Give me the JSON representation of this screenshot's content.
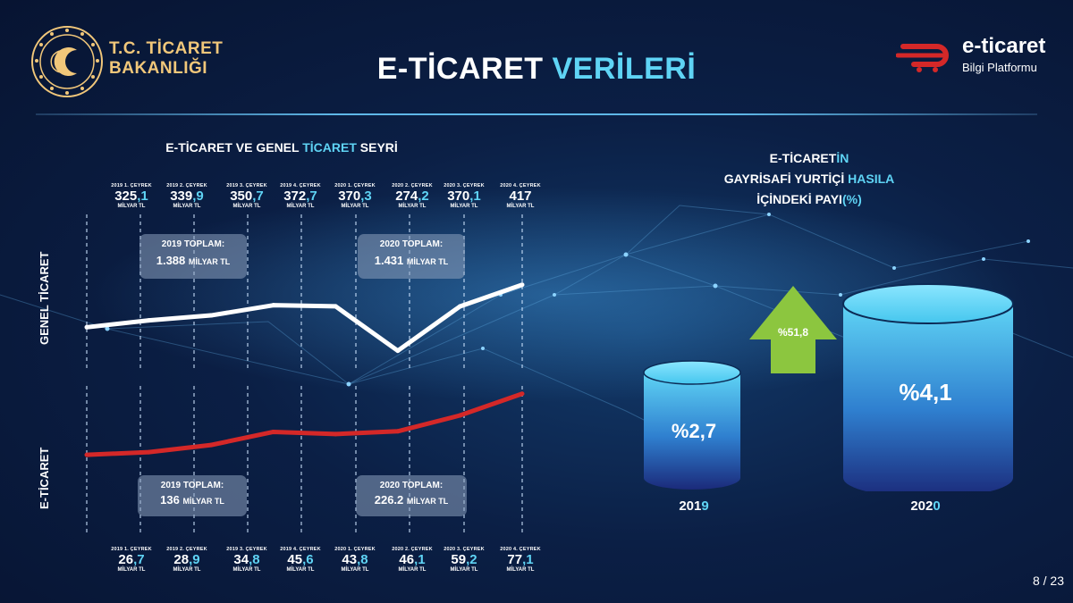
{
  "header": {
    "title_white": "E-TİCARET",
    "title_cyan": "VERİLERİ",
    "org_line1": "T.C. TİCARET",
    "org_line2": "BAKANLIĞI",
    "brand_main": "e-ticaret",
    "brand_sub": "Bilgi Platformu"
  },
  "line_chart": {
    "heading_white": "E-TİCARET VE GENEL",
    "heading_cyan": "TİCARET",
    "heading_end": "SEYRİ",
    "genel_label": "GENEL TİCARET",
    "eticaret_label": "E-TİCARET",
    "unit": "MİLYAR TL",
    "genel_total_2019": {
      "label": "2019 TOPLAM:",
      "value": "1.388",
      "unit": "MİLYAR TL"
    },
    "genel_total_2020": {
      "label": "2020 TOPLAM:",
      "value": "1.431",
      "unit": "MİLYAR TL"
    },
    "e_total_2019": {
      "label": "2019 TOPLAM:",
      "value": "136",
      "unit": "MİLYAR TL"
    },
    "e_total_2020": {
      "label": "2020 TOPLAM:",
      "value": "226.2",
      "unit": "MİLYAR TL"
    }
  },
  "chart_data": [
    {
      "type": "line",
      "categories": [
        "2019 1. ÇEYREK",
        "2019 2. ÇEYREK",
        "2019 3. ÇEYREK",
        "2019 4. ÇEYREK",
        "2020 1. ÇEYREK",
        "2020 2. ÇEYREK",
        "2020 3. ÇEYREK",
        "2020 4. ÇEYREK"
      ],
      "series": [
        {
          "name": "GENEL TİCARET",
          "values": [
            325.1,
            339.9,
            350.7,
            372.7,
            370.3,
            274.2,
            370.1,
            417
          ]
        }
      ],
      "value_labels": [
        "325,1",
        "339,9",
        "350,7",
        "372,7",
        "370,3",
        "274,2",
        "370,1",
        "417"
      ],
      "ylabel": "MİLYAR TL",
      "color": "#ffffff"
    },
    {
      "type": "line",
      "categories": [
        "2019 1. ÇEYREK",
        "2019 2. ÇEYREK",
        "2019 3. ÇEYREK",
        "2019 4. ÇEYREK",
        "2020 1. ÇEYREK",
        "2020 2. ÇEYREK",
        "2020 3. ÇEYREK",
        "2020 4. ÇEYREK"
      ],
      "series": [
        {
          "name": "E-TİCARET",
          "values": [
            26.7,
            28.9,
            34.8,
            45.6,
            43.8,
            46.1,
            59.2,
            77.1
          ]
        }
      ],
      "value_labels": [
        "26,7",
        "28,9",
        "34,8",
        "45,6",
        "43,8",
        "46,1",
        "59,2",
        "77,1"
      ],
      "ylabel": "MİLYAR TL",
      "color": "#d42828"
    },
    {
      "type": "bar",
      "title": "E-TİCARETİN GAYRİSAFİ YURTİÇİ HASILA İÇİNDEKİ PAYI(%)",
      "categories": [
        "2019",
        "2020"
      ],
      "values": [
        2.7,
        4.1
      ],
      "value_labels": [
        "%2,7",
        "%4,1"
      ],
      "change_label": "%51,8"
    }
  ],
  "cylinders": {
    "heading_l1_white": "E-TİCARET",
    "heading_l1_cyan": "İN",
    "heading_l2_white": "GAYRİSAFİ YURTİÇİ",
    "heading_l2_cyan": "HASILA",
    "heading_l3_white": "İÇİNDEKİ PAYI",
    "heading_l3_cyan": "(%)",
    "year_2019_a": "201",
    "year_2019_b": "9",
    "year_2020_a": "202",
    "year_2020_b": "0"
  },
  "footer": {
    "page": "8 / 23"
  },
  "colors": {
    "accent": "#5fd4f5",
    "genel_line": "#ffffff",
    "eticaret_line": "#d42828",
    "arrow": "#8cc63f",
    "gold": "#f1c77a"
  }
}
